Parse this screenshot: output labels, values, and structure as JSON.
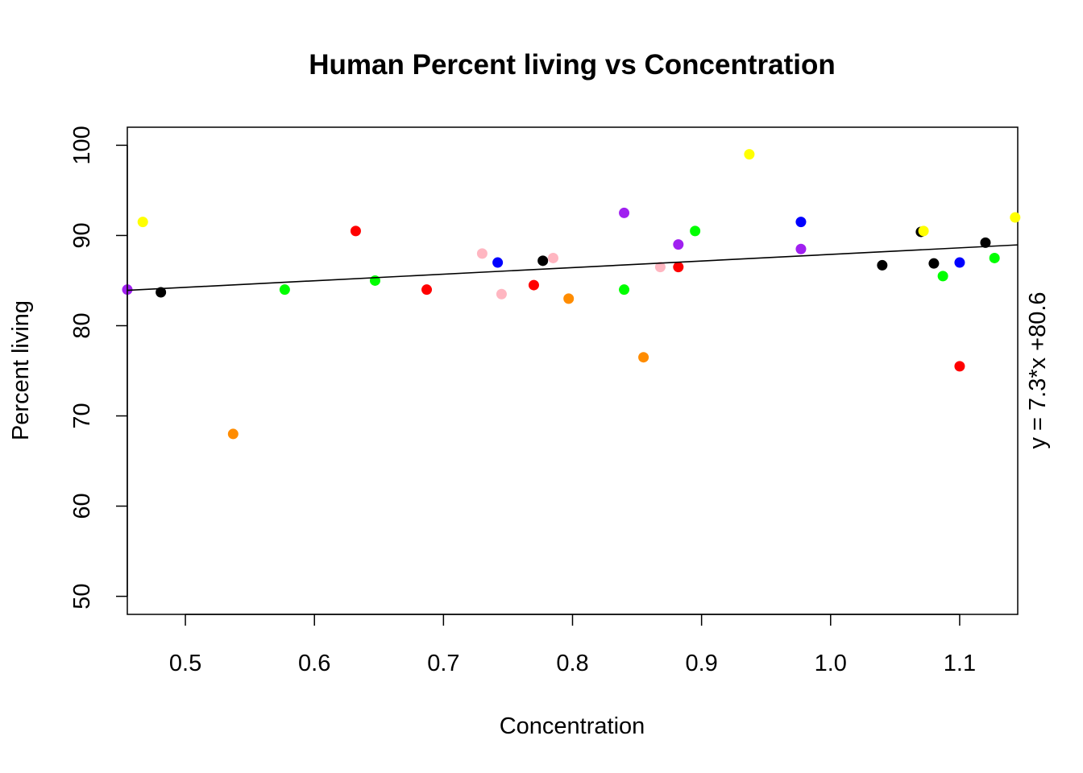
{
  "chart_data": {
    "type": "scatter",
    "title": "Human Percent living vs Concentration",
    "xlabel": "Concentration",
    "ylabel": "Percent living",
    "xlim": [
      0.455,
      1.145
    ],
    "ylim": [
      48,
      102
    ],
    "x_ticks": [
      0.5,
      0.6,
      0.7,
      0.8,
      0.9,
      1.0,
      1.1
    ],
    "x_tick_labels": [
      "0.5",
      "0.6",
      "0.7",
      "0.8",
      "0.9",
      "1.0",
      "1.1"
    ],
    "y_ticks": [
      50,
      60,
      70,
      80,
      90,
      100
    ],
    "y_tick_labels": [
      "50",
      "60",
      "70",
      "80",
      "90",
      "100"
    ],
    "grid": false,
    "colors": {
      "yellow": "#ffff00",
      "black": "#000000",
      "orange": "#ff8c00",
      "green": "#00ff00",
      "red": "#ff0000",
      "pink": "#ffb6c1",
      "blue": "#0000ff",
      "purple": "#a020f0"
    },
    "points": [
      {
        "x": 0.455,
        "y": 84.0,
        "color": "purple"
      },
      {
        "x": 0.467,
        "y": 91.5,
        "color": "yellow"
      },
      {
        "x": 0.481,
        "y": 83.7,
        "color": "black"
      },
      {
        "x": 0.537,
        "y": 68.0,
        "color": "orange"
      },
      {
        "x": 0.577,
        "y": 84.0,
        "color": "green"
      },
      {
        "x": 0.632,
        "y": 90.5,
        "color": "red"
      },
      {
        "x": 0.647,
        "y": 85.0,
        "color": "green"
      },
      {
        "x": 0.687,
        "y": 84.0,
        "color": "red"
      },
      {
        "x": 0.73,
        "y": 88.0,
        "color": "pink"
      },
      {
        "x": 0.742,
        "y": 87.0,
        "color": "blue"
      },
      {
        "x": 0.745,
        "y": 83.5,
        "color": "pink"
      },
      {
        "x": 0.77,
        "y": 84.5,
        "color": "red"
      },
      {
        "x": 0.777,
        "y": 87.2,
        "color": "black"
      },
      {
        "x": 0.785,
        "y": 87.5,
        "color": "pink"
      },
      {
        "x": 0.797,
        "y": 83.0,
        "color": "orange"
      },
      {
        "x": 0.84,
        "y": 92.5,
        "color": "purple"
      },
      {
        "x": 0.84,
        "y": 84.0,
        "color": "green"
      },
      {
        "x": 0.855,
        "y": 76.5,
        "color": "orange"
      },
      {
        "x": 0.868,
        "y": 86.5,
        "color": "pink"
      },
      {
        "x": 0.882,
        "y": 86.5,
        "color": "red"
      },
      {
        "x": 0.882,
        "y": 89.0,
        "color": "purple"
      },
      {
        "x": 0.895,
        "y": 90.5,
        "color": "green"
      },
      {
        "x": 0.937,
        "y": 99.0,
        "color": "yellow"
      },
      {
        "x": 0.977,
        "y": 91.5,
        "color": "blue"
      },
      {
        "x": 0.977,
        "y": 88.5,
        "color": "purple"
      },
      {
        "x": 1.04,
        "y": 86.7,
        "color": "black"
      },
      {
        "x": 1.07,
        "y": 90.4,
        "color": "black"
      },
      {
        "x": 1.072,
        "y": 90.5,
        "color": "yellow"
      },
      {
        "x": 1.08,
        "y": 86.9,
        "color": "black"
      },
      {
        "x": 1.087,
        "y": 85.5,
        "color": "green"
      },
      {
        "x": 1.1,
        "y": 87.0,
        "color": "blue"
      },
      {
        "x": 1.1,
        "y": 75.5,
        "color": "red"
      },
      {
        "x": 1.12,
        "y": 89.2,
        "color": "black"
      },
      {
        "x": 1.127,
        "y": 87.5,
        "color": "green"
      },
      {
        "x": 1.143,
        "y": 92.0,
        "color": "yellow"
      }
    ],
    "regression": {
      "slope": 7.3,
      "intercept": 80.6,
      "color": "#000000"
    },
    "annotation": "y = 7.3*x +80.6"
  }
}
